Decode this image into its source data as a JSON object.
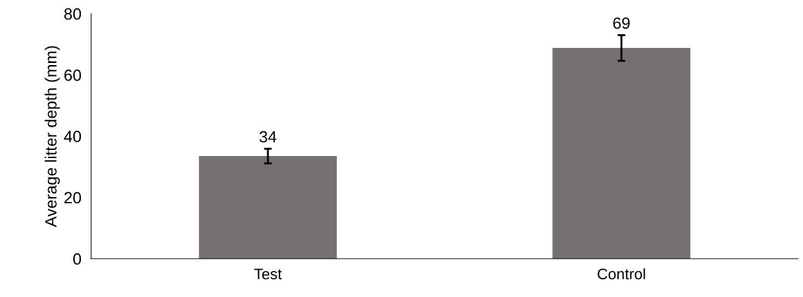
{
  "chart_data": {
    "type": "bar",
    "ylabel": "Average litter depth (mm)",
    "categories": [
      "Test",
      "Control"
    ],
    "series": [
      {
        "color": "#767171",
        "values": [
          33.5,
          68.8
        ],
        "errors": [
          2.4,
          4.2
        ],
        "value_labels": [
          "34",
          "69"
        ]
      }
    ],
    "ylim": [
      0,
      80
    ],
    "yticks": [
      0,
      20,
      40,
      60,
      80
    ],
    "grid": false,
    "legend": false
  }
}
